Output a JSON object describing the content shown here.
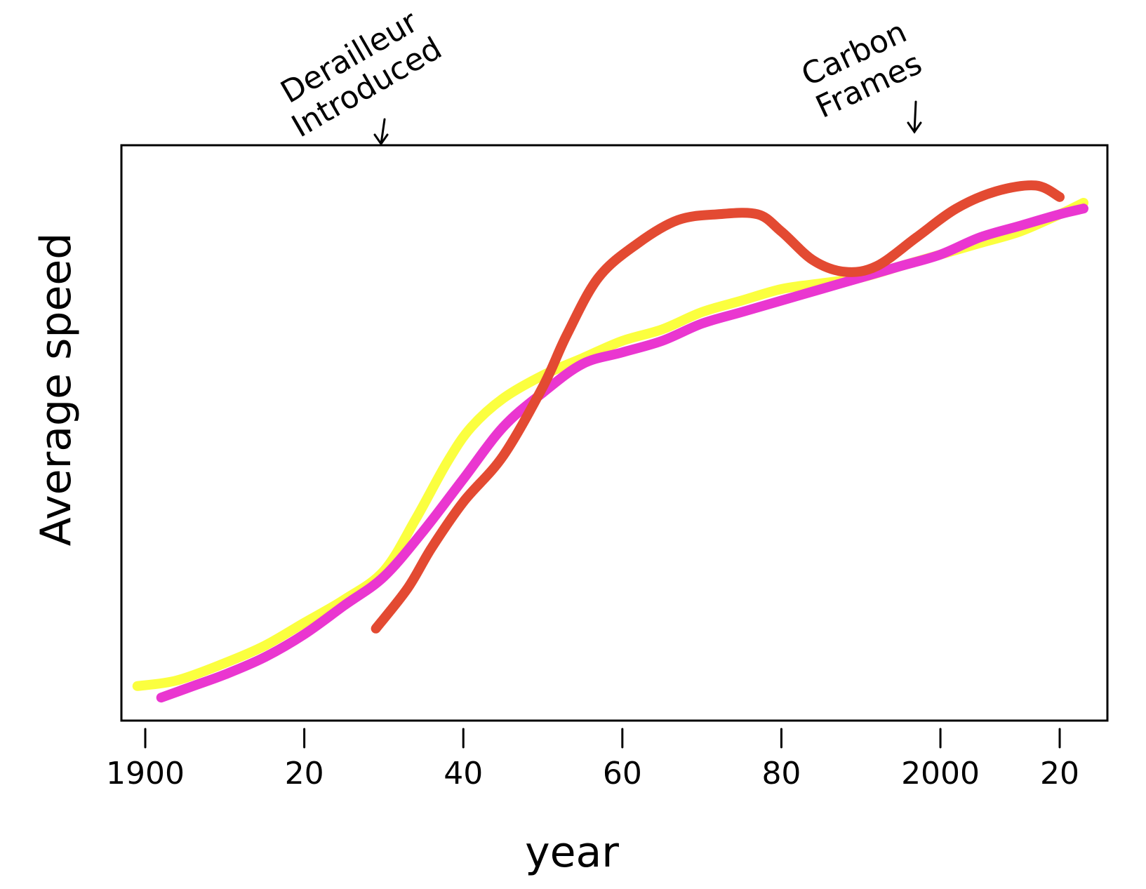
{
  "chart_data": {
    "type": "line",
    "title": "",
    "xlabel": "year",
    "ylabel": "Average speed",
    "xlim": [
      1897,
      2021
    ],
    "ylim": [
      0,
      100
    ],
    "grid": false,
    "x_ticks": [
      {
        "value": 1900,
        "label": "1900"
      },
      {
        "value": 1920,
        "label": "20"
      },
      {
        "value": 1940,
        "label": "40"
      },
      {
        "value": 1960,
        "label": "60"
      },
      {
        "value": 1980,
        "label": "80"
      },
      {
        "value": 2000,
        "label": "2000"
      },
      {
        "value": 2015,
        "label": "20"
      }
    ],
    "series": [
      {
        "color": "#fbff3f",
        "x": [
          1899,
          1904,
          1910,
          1915,
          1920,
          1925,
          1930,
          1934,
          1938,
          1941,
          1945,
          1950,
          1955,
          1960,
          1965,
          1970,
          1975,
          1980,
          1985,
          1990,
          1995,
          2000,
          2005,
          2010,
          2015,
          2018
        ],
        "y": [
          6,
          7,
          10,
          13,
          17,
          21,
          26,
          35,
          45,
          51,
          56,
          60,
          63,
          66,
          68,
          71,
          73,
          75,
          76,
          77,
          79,
          81,
          83,
          85,
          88,
          90
        ]
      },
      {
        "color": "#ea36d0",
        "x": [
          1902,
          1906,
          1910,
          1915,
          1920,
          1925,
          1930,
          1935,
          1940,
          1945,
          1950,
          1955,
          1960,
          1965,
          1970,
          1975,
          1980,
          1985,
          1990,
          1995,
          2000,
          2005,
          2010,
          2015,
          2018
        ],
        "y": [
          4,
          6,
          8,
          11,
          15,
          20,
          25,
          33,
          42,
          51,
          57,
          62,
          64,
          66,
          69,
          71,
          73,
          75,
          77,
          79,
          81,
          84,
          86,
          88,
          89
        ]
      },
      {
        "color": "#e34a32",
        "x": [
          1929,
          1933,
          1936,
          1940,
          1945,
          1950,
          1953,
          1957,
          1962,
          1967,
          1972,
          1977,
          1980,
          1984,
          1988,
          1992,
          1997,
          2002,
          2007,
          2012,
          2015
        ],
        "y": [
          16,
          23,
          30,
          38,
          46,
          58,
          67,
          77,
          83,
          87,
          88,
          88,
          85,
          80,
          78,
          79,
          84,
          89,
          92,
          93,
          91
        ]
      }
    ],
    "annotations": [
      {
        "x": 1929,
        "lines": [
          "Derailleur",
          "Introduced"
        ]
      },
      {
        "x": 1996,
        "lines": [
          "Carbon",
          "Frames"
        ]
      }
    ]
  }
}
